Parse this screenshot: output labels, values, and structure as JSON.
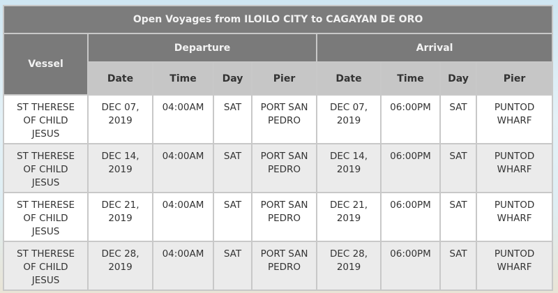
{
  "title": "Open Voyages from ILOILO CITY to CAGAYAN DE ORO",
  "headers": {
    "vessel": "Vessel",
    "departure": "Departure",
    "arrival": "Arrival",
    "sub": [
      "Date",
      "Time",
      "Day",
      "Pier",
      "Date",
      "Time",
      "Day",
      "Pier"
    ]
  },
  "rows": [
    [
      "ST THERESE OF CHILD JESUS",
      "DEC 07, 2019",
      "04:00AM",
      "SAT",
      "PORT SAN PEDRO",
      "DEC 07, 2019",
      "06:00PM",
      "SAT",
      "PUNTOD WHARF"
    ],
    [
      "ST THERESE OF CHILD JESUS",
      "DEC 14, 2019",
      "04:00AM",
      "SAT",
      "PORT SAN PEDRO",
      "DEC 14, 2019",
      "06:00PM",
      "SAT",
      "PUNTOD WHARF"
    ],
    [
      "ST THERESE OF CHILD JESUS",
      "DEC 21, 2019",
      "04:00AM",
      "SAT",
      "PORT SAN PEDRO",
      "DEC 21, 2019",
      "06:00PM",
      "SAT",
      "PUNTOD WHARF"
    ],
    [
      "ST THERESE OF CHILD JESUS",
      "DEC 28, 2019",
      "04:00AM",
      "SAT",
      "PORT SAN PEDRO",
      "DEC 28, 2019",
      "06:00PM",
      "SAT",
      "PUNTOD WHARF"
    ]
  ]
}
